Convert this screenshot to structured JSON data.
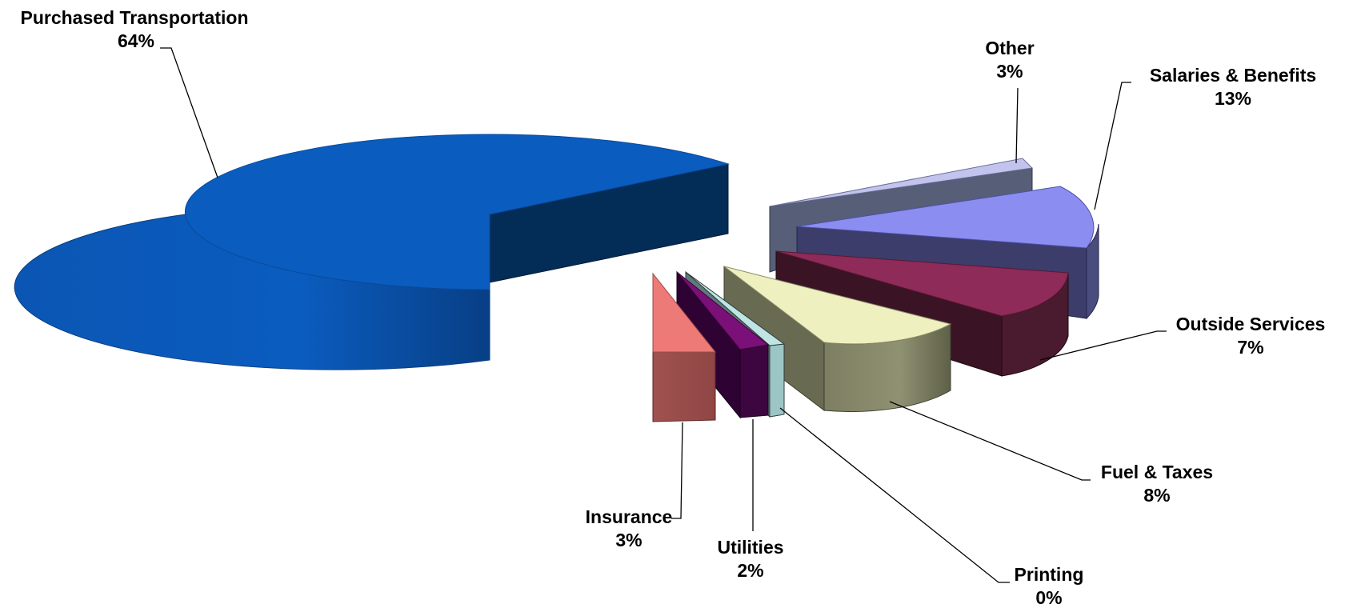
{
  "chart_data": {
    "type": "pie",
    "style": "3d-exploded",
    "legend": "none",
    "slices": [
      {
        "label": "Purchased Transportation",
        "pct_label": "64%",
        "value": 64,
        "color": "#0a5cbf"
      },
      {
        "label": "Salaries & Benefits",
        "pct_label": "13%",
        "value": 13,
        "color": "#8b8ef0"
      },
      {
        "label": "Outside Services",
        "pct_label": "7%",
        "value": 7,
        "color": "#8e2b58"
      },
      {
        "label": "Fuel & Taxes",
        "pct_label": "8%",
        "value": 8,
        "color": "#eef0c0"
      },
      {
        "label": "Printing",
        "pct_label": "0%",
        "value": 0,
        "color": "#bfe4e4"
      },
      {
        "label": "Utilities",
        "pct_label": "2%",
        "value": 2,
        "color": "#7a1078"
      },
      {
        "label": "Insurance",
        "pct_label": "3%",
        "value": 3,
        "color": "#ee7a78"
      },
      {
        "label": "Other",
        "pct_label": "3%",
        "value": 3,
        "color": "#c2c4ee"
      }
    ]
  }
}
